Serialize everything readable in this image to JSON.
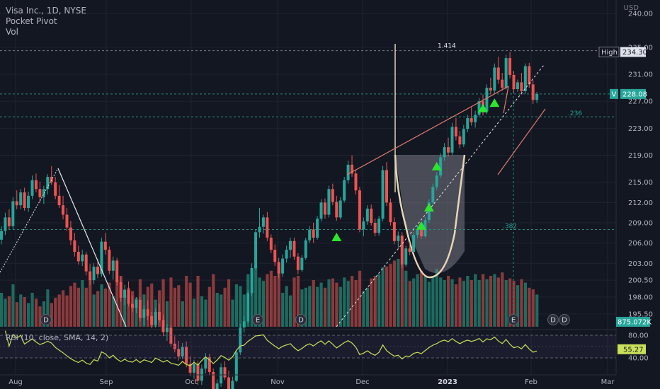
{
  "chart_data": {
    "type": "candlestick",
    "symbol_title": "Visa Inc., 1D, NYSE",
    "indicators": [
      "Pocket Pivot",
      "Vol"
    ],
    "currency": "USD",
    "y_axis": {
      "ticks": [
        "240.00",
        "235.00",
        "231.00",
        "227.00",
        "223.00",
        "219.00",
        "215.00",
        "212.00",
        "209.00",
        "206.00",
        "203.00",
        "200.50",
        "198.00",
        "195.50"
      ],
      "min": 193.6,
      "max": 242.0
    },
    "x_axis": {
      "labels": [
        {
          "text": "Aug",
          "bold": false
        },
        {
          "text": "Sep",
          "bold": false
        },
        {
          "text": "Oct",
          "bold": false
        },
        {
          "text": "Nov",
          "bold": false
        },
        {
          "text": "Dec",
          "bold": false
        },
        {
          "text": "2023",
          "bold": true
        },
        {
          "text": "Feb",
          "bold": false
        },
        {
          "text": "Mar",
          "bold": false
        }
      ]
    },
    "price_labels": {
      "high": {
        "label": "High",
        "value": "234.30",
        "price": 234.3
      },
      "last": {
        "label": "V",
        "value": "228.08",
        "price": 228.08
      },
      "volume": {
        "value": "875.072K"
      }
    },
    "fib_labels": [
      {
        "text": "1.414",
        "price": 234.5
      },
      {
        "text": ".236",
        "price": 224.7
      },
      {
        "text": ".382",
        "price": 208.0
      }
    ],
    "pocket_pivot_markers": [
      {
        "bar": 87,
        "price": 206.9
      },
      {
        "bar": 109,
        "price": 208.6
      },
      {
        "bar": 111,
        "price": 211.3
      },
      {
        "bar": 113,
        "price": 217.4
      },
      {
        "bar": 125,
        "price": 226.0
      },
      {
        "bar": 128,
        "price": 226.8
      }
    ],
    "event_markers": [
      "D",
      "E",
      "D",
      "E",
      "D",
      "D"
    ],
    "candles_ohlc": [
      [
        206.5,
        208.5,
        205.8,
        207.8
      ],
      [
        207.8,
        210.5,
        207.2,
        209.8
      ],
      [
        209.8,
        211.0,
        208.0,
        208.5
      ],
      [
        208.5,
        212.8,
        208.0,
        212.2
      ],
      [
        212.2,
        213.8,
        211.0,
        211.6
      ],
      [
        211.6,
        214.0,
        211.0,
        213.5
      ],
      [
        213.5,
        214.2,
        210.8,
        211.2
      ],
      [
        211.2,
        213.6,
        210.6,
        213.0
      ],
      [
        213.0,
        216.0,
        212.5,
        215.3
      ],
      [
        215.3,
        216.3,
        213.5,
        214.0
      ],
      [
        214.0,
        215.1,
        212.0,
        212.8
      ],
      [
        212.8,
        214.5,
        211.8,
        214.0
      ],
      [
        214.0,
        216.2,
        213.2,
        215.8
      ],
      [
        215.8,
        217.4,
        214.6,
        215.0
      ],
      [
        215.0,
        215.8,
        212.5,
        213.0
      ],
      [
        213.0,
        214.6,
        211.2,
        211.6
      ],
      [
        211.6,
        213.0,
        209.5,
        210.2
      ],
      [
        210.2,
        211.2,
        207.8,
        208.3
      ],
      [
        208.3,
        209.3,
        205.7,
        206.4
      ],
      [
        206.4,
        207.5,
        204.0,
        204.7
      ],
      [
        204.7,
        205.6,
        202.8,
        203.3
      ],
      [
        203.3,
        205.0,
        202.6,
        204.3
      ],
      [
        204.3,
        204.7,
        201.2,
        201.8
      ],
      [
        201.8,
        202.9,
        199.8,
        200.5
      ],
      [
        200.5,
        203.0,
        199.9,
        202.5
      ],
      [
        202.5,
        203.6,
        200.8,
        201.4
      ],
      [
        201.4,
        206.8,
        201.0,
        206.2
      ],
      [
        206.2,
        207.5,
        204.3,
        205.0
      ],
      [
        205.0,
        205.5,
        201.4,
        201.9
      ],
      [
        201.9,
        204.0,
        200.6,
        203.4
      ],
      [
        203.4,
        203.8,
        199.7,
        200.2
      ],
      [
        200.2,
        201.0,
        197.3,
        197.9
      ],
      [
        197.9,
        199.8,
        196.8,
        199.1
      ],
      [
        199.1,
        200.3,
        196.6,
        197.0
      ],
      [
        197.0,
        198.2,
        195.8,
        196.4
      ],
      [
        196.4,
        198.0,
        195.6,
        197.6
      ],
      [
        197.6,
        198.0,
        194.4,
        194.9
      ],
      [
        194.9,
        196.8,
        193.8,
        196.2
      ],
      [
        196.2,
        197.5,
        194.6,
        195.2
      ],
      [
        195.2,
        195.8,
        193.4,
        193.9
      ],
      [
        193.9,
        196.3,
        193.5,
        195.8
      ],
      [
        195.8,
        197.0,
        194.2,
        194.6
      ],
      [
        194.6,
        195.4,
        192.2,
        192.8
      ],
      [
        192.8,
        194.0,
        191.5,
        193.5
      ],
      [
        193.5,
        193.9,
        190.6,
        191.1
      ],
      [
        191.1,
        192.2,
        189.8,
        190.3
      ],
      [
        190.3,
        191.5,
        188.6,
        189.2
      ],
      [
        189.2,
        191.2,
        188.8,
        190.6
      ],
      [
        190.6,
        191.4,
        187.6,
        188.1
      ],
      [
        188.1,
        189.2,
        186.3,
        186.8
      ],
      [
        186.8,
        188.7,
        185.9,
        188.1
      ],
      [
        188.1,
        188.6,
        185.0,
        185.6
      ],
      [
        185.6,
        188.0,
        185.0,
        187.4
      ],
      [
        187.4,
        189.7,
        186.7,
        189.1
      ],
      [
        189.1,
        189.6,
        186.4,
        186.9
      ],
      [
        186.9,
        187.4,
        183.0,
        183.6
      ],
      [
        183.6,
        185.8,
        182.8,
        185.2
      ],
      [
        185.2,
        188.2,
        184.7,
        187.6
      ],
      [
        187.6,
        188.5,
        185.7,
        186.1
      ],
      [
        186.1,
        187.1,
        183.4,
        183.9
      ],
      [
        183.9,
        186.2,
        183.5,
        185.6
      ],
      [
        185.6,
        190.2,
        185.4,
        189.8
      ],
      [
        189.8,
        194.0,
        189.4,
        193.5
      ],
      [
        193.5,
        195.2,
        192.7,
        194.4
      ],
      [
        194.4,
        199.0,
        194.1,
        198.6
      ],
      [
        198.6,
        203.0,
        198.2,
        202.3
      ],
      [
        202.3,
        208.0,
        202.0,
        207.6
      ],
      [
        207.6,
        211.2,
        206.8,
        208.4
      ],
      [
        208.4,
        210.2,
        207.4,
        209.8
      ],
      [
        209.8,
        210.6,
        206.3,
        206.8
      ],
      [
        206.8,
        207.3,
        204.5,
        205.0
      ],
      [
        205.0,
        205.8,
        202.6,
        203.2
      ],
      [
        203.2,
        203.8,
        200.8,
        201.5
      ],
      [
        201.5,
        204.3,
        201.0,
        203.7
      ],
      [
        203.7,
        205.6,
        203.1,
        205.0
      ],
      [
        205.0,
        206.8,
        203.8,
        206.3
      ],
      [
        206.3,
        206.8,
        203.5,
        204.0
      ],
      [
        204.0,
        204.5,
        201.4,
        202.0
      ],
      [
        202.0,
        204.2,
        201.7,
        203.8
      ],
      [
        203.8,
        206.8,
        203.5,
        206.4
      ],
      [
        206.4,
        208.5,
        206.0,
        208.0
      ],
      [
        208.0,
        209.0,
        206.0,
        206.8
      ],
      [
        206.8,
        210.0,
        206.5,
        209.6
      ],
      [
        209.6,
        212.5,
        209.2,
        212.0
      ],
      [
        212.0,
        212.6,
        209.6,
        210.2
      ],
      [
        210.2,
        214.5,
        209.8,
        214.0
      ],
      [
        214.0,
        214.8,
        211.6,
        212.1
      ],
      [
        212.1,
        213.0,
        209.3,
        209.8
      ],
      [
        209.8,
        212.8,
        209.5,
        212.3
      ],
      [
        212.3,
        215.8,
        212.0,
        215.3
      ],
      [
        215.3,
        218.2,
        214.8,
        217.6
      ],
      [
        217.6,
        219.0,
        215.8,
        216.3
      ],
      [
        216.3,
        216.8,
        213.2,
        213.8
      ],
      [
        213.8,
        214.3,
        207.6,
        208.0
      ],
      [
        208.0,
        209.8,
        207.0,
        209.2
      ],
      [
        209.2,
        211.6,
        208.7,
        211.1
      ],
      [
        211.1,
        211.7,
        208.6,
        209.0
      ],
      [
        209.0,
        209.6,
        207.0,
        207.5
      ],
      [
        207.5,
        210.0,
        207.1,
        209.6
      ],
      [
        209.6,
        217.4,
        209.2,
        216.8
      ],
      [
        216.8,
        218.0,
        211.5,
        212.0
      ],
      [
        212.0,
        212.6,
        208.6,
        209.1
      ],
      [
        209.1,
        209.8,
        205.8,
        206.3
      ],
      [
        206.3,
        207.7,
        205.3,
        207.1
      ],
      [
        207.1,
        207.6,
        202.3,
        202.8
      ],
      [
        202.8,
        205.6,
        202.5,
        205.2
      ],
      [
        205.2,
        206.2,
        204.2,
        204.7
      ],
      [
        204.7,
        207.6,
        204.5,
        207.2
      ],
      [
        207.2,
        208.6,
        206.7,
        208.0
      ],
      [
        208.0,
        209.0,
        206.6,
        207.0
      ],
      [
        207.0,
        209.8,
        206.8,
        209.4
      ],
      [
        209.4,
        212.5,
        209.0,
        212.0
      ],
      [
        212.0,
        214.8,
        211.6,
        214.3
      ],
      [
        214.3,
        216.5,
        213.8,
        216.0
      ],
      [
        216.0,
        219.3,
        215.6,
        218.7
      ],
      [
        218.7,
        220.8,
        218.2,
        220.2
      ],
      [
        220.2,
        221.6,
        218.8,
        219.4
      ],
      [
        219.4,
        223.8,
        219.0,
        223.2
      ],
      [
        223.2,
        224.5,
        221.2,
        221.8
      ],
      [
        221.8,
        222.6,
        220.0,
        220.6
      ],
      [
        220.6,
        223.5,
        220.2,
        222.9
      ],
      [
        222.9,
        225.0,
        222.4,
        224.5
      ],
      [
        224.5,
        226.1,
        223.4,
        223.9
      ],
      [
        223.9,
        225.6,
        223.1,
        225.0
      ],
      [
        225.0,
        227.5,
        224.6,
        227.0
      ],
      [
        227.0,
        228.0,
        224.9,
        225.5
      ],
      [
        225.5,
        229.5,
        225.1,
        229.0
      ],
      [
        229.0,
        230.5,
        228.0,
        228.6
      ],
      [
        228.6,
        232.6,
        228.2,
        232.0
      ],
      [
        232.0,
        233.6,
        229.6,
        230.2
      ],
      [
        230.2,
        231.2,
        228.6,
        229.0
      ],
      [
        229.0,
        233.9,
        228.7,
        233.4
      ],
      [
        233.4,
        234.3,
        230.4,
        230.9
      ],
      [
        230.9,
        231.4,
        228.3,
        228.8
      ],
      [
        228.8,
        230.2,
        228.4,
        229.8
      ],
      [
        229.8,
        231.2,
        228.0,
        228.5
      ],
      [
        228.5,
        232.6,
        228.1,
        232.2
      ],
      [
        232.2,
        232.7,
        229.0,
        229.5
      ],
      [
        229.5,
        230.1,
        226.6,
        227.2
      ],
      [
        227.2,
        228.4,
        226.7,
        228.08
      ]
    ],
    "volume_pct": [
      40,
      33,
      36,
      50,
      29,
      38,
      35,
      28,
      40,
      33,
      24,
      30,
      44,
      28,
      34,
      38,
      43,
      37,
      48,
      52,
      46,
      55,
      46,
      58,
      38,
      42,
      50,
      45,
      52,
      36,
      55,
      60,
      38,
      46,
      42,
      34,
      56,
      38,
      47,
      51,
      32,
      43,
      56,
      30,
      58,
      46,
      49,
      30,
      60,
      52,
      33,
      60,
      36,
      32,
      47,
      62,
      40,
      38,
      46,
      56,
      32,
      50,
      48,
      38,
      62,
      66,
      70,
      58,
      54,
      62,
      66,
      60,
      72,
      40,
      48,
      37,
      58,
      60,
      44,
      46,
      48,
      55,
      47,
      52,
      46,
      56,
      57,
      52,
      47,
      58,
      54,
      60,
      55,
      66,
      42,
      46,
      57,
      60,
      62,
      70,
      71,
      74,
      78,
      80,
      73,
      66,
      54,
      57,
      62,
      66,
      60,
      53,
      60,
      68,
      58,
      55,
      60,
      56,
      50,
      58,
      54,
      60,
      55,
      62,
      55,
      62,
      56,
      60,
      62,
      58,
      64,
      55,
      57,
      54,
      49,
      56,
      52,
      46,
      44,
      38
    ],
    "rsi": {
      "legend": "RSI (10, close, SMA, 14, 2)",
      "value": "55.27",
      "ticks": [
        "80.00",
        "40.00"
      ],
      "min": 20,
      "max": 90,
      "band_upper": 80,
      "band_lower": 40
    }
  }
}
